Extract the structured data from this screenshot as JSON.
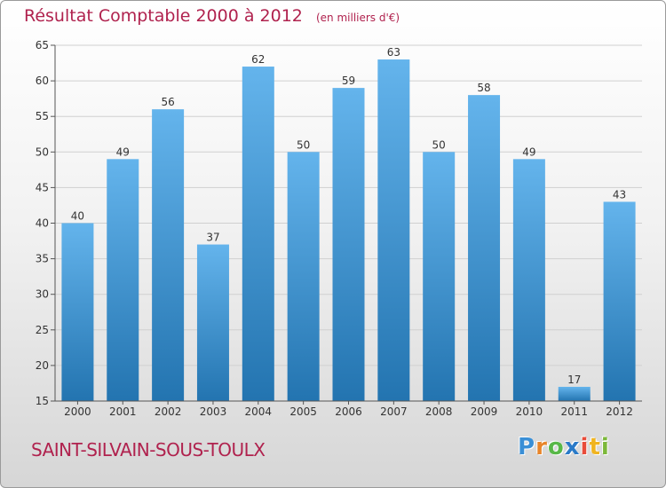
{
  "title": {
    "main": "Résultat Comptable 2000 à 2012",
    "unit": "(en milliers d'€)"
  },
  "footer": {
    "commune": "SAINT-SILVAIN-SOUS-TOULX"
  },
  "logo": {
    "letters": [
      "P",
      "r",
      "o",
      "x",
      "i",
      "t",
      "i"
    ],
    "colors": [
      "#3a8fd6",
      "#e8852a",
      "#58b848",
      "#2a7ac8",
      "#e84c3a",
      "#f0b420",
      "#7cb83a"
    ]
  },
  "colors": {
    "bar_light": "#64b4ec",
    "bar_dark": "#2374b0",
    "grid": "#d0d0d0",
    "axis": "#555555",
    "text": "#333333"
  },
  "chart_data": {
    "type": "bar",
    "title": "Résultat Comptable 2000 à 2012",
    "xlabel": "",
    "ylabel": "",
    "categories": [
      "2000",
      "2001",
      "2002",
      "2003",
      "2004",
      "2005",
      "2006",
      "2007",
      "2008",
      "2009",
      "2010",
      "2011",
      "2012"
    ],
    "values": [
      40,
      49,
      56,
      37,
      62,
      50,
      59,
      63,
      50,
      58,
      49,
      17,
      43
    ],
    "ylim": [
      15,
      65
    ],
    "yticks": [
      15,
      20,
      25,
      30,
      35,
      40,
      45,
      50,
      55,
      60,
      65
    ],
    "grid": true
  }
}
